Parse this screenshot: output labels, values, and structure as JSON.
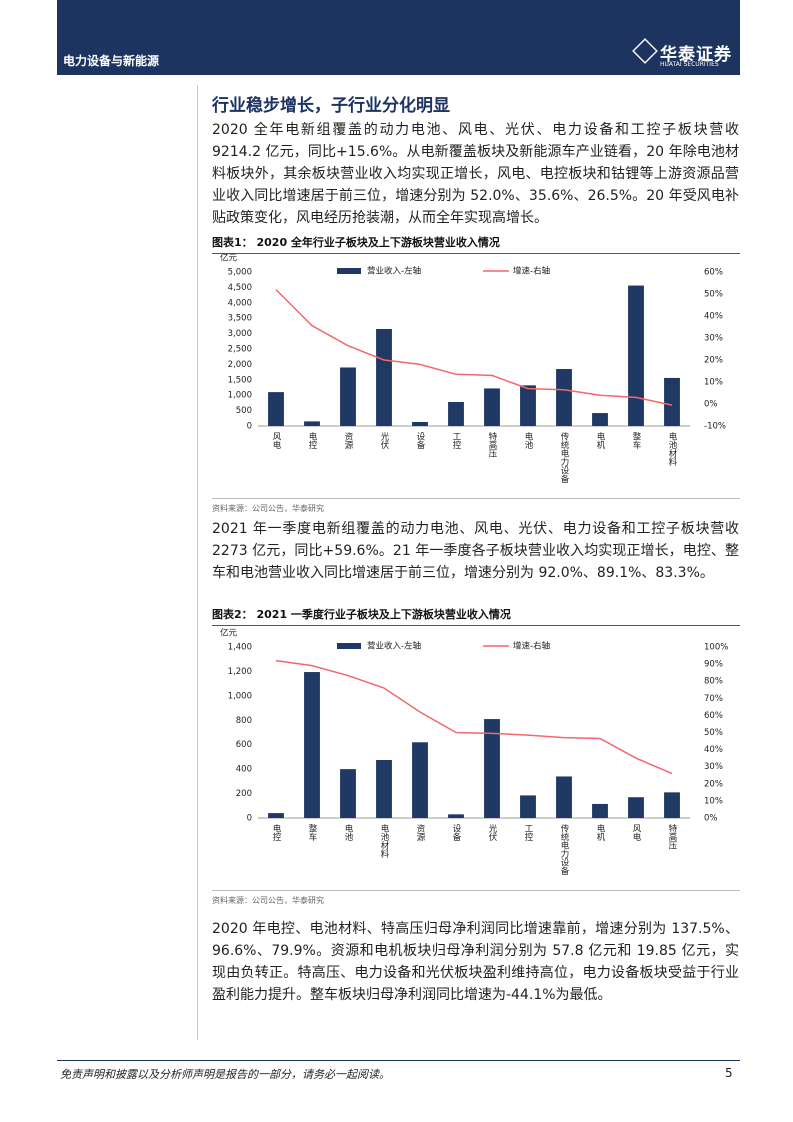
{
  "header": {
    "section": "电力设备与新能源",
    "logo": "华泰证券",
    "logo_en": "HUATAI SECURITIES"
  },
  "heading": "行业稳步增长，子行业分化明显",
  "paragraphs": [
    "2020 全年电新组覆盖的动力电池、风电、光伏、电力设备和工控子板块营收 9214.2 亿元，同比+15.6%。从电新覆盖板块及新能源车产业链看，20 年除电池材料板块外，其余板块营业收入均实现正增长，风电、电控板块和钴锂等上游资源品营业收入同比增速居于前三位，增速分别为 52.0%、35.6%、26.5%。20 年受风电补贴政策变化，风电经历抢装潮，从而全年实现高增长。",
    "2021 年一季度电新组覆盖的动力电池、风电、光伏、电力设备和工控子板块营收 2273 亿元，同比+59.6%。21 年一季度各子板块营业收入均实现正增长，电控、整车和电池营业收入同比增速居于前三位，增速分别为 92.0%、89.1%、83.3%。",
    "2020 年电控、电池材料、特高压归母净利润同比增速靠前，增速分别为 137.5%、96.6%、79.9%。资源和电机板块归母净利润分别为 57.8 亿元和 19.85 亿元，实现由负转正。特高压、电力设备和光伏板块盈利维持高位，电力设备板块受益于行业盈利能力提升。整车板块归母净利润同比增速为-44.1%为最低。"
  ],
  "chart_data": [
    {
      "type": "combo",
      "title": "图表1： 2020 全年行业子板块及上下游板块营业收入情况",
      "y_label": "亿元",
      "source": "资料来源：公司公告，华泰研究",
      "legend": "top",
      "grid": false,
      "categories": [
        "风电",
        "电控",
        "资源",
        "光伏",
        "设备",
        "工控",
        "特高压",
        "电池",
        "传统电力设备",
        "电机",
        "整车",
        "电池材料"
      ],
      "series": [
        {
          "name": "营业收入-左轴",
          "type": "bar",
          "color": "#1f3864",
          "values": [
            1100,
            150,
            1900,
            3150,
            130,
            780,
            1220,
            1320,
            1850,
            420,
            4560,
            1560
          ]
        },
        {
          "name": "增速-右轴",
          "type": "line",
          "axis": "y2",
          "color": "#f4676a",
          "values": [
            52.0,
            35.6,
            26.5,
            20,
            18,
            13.5,
            13,
            7,
            6.5,
            4,
            3,
            -0.5
          ]
        }
      ],
      "ylim": [
        0,
        5000
      ],
      "yticks": [
        0,
        500,
        {
          "value": 1000,
          "label": "1,000"
        },
        {
          "value": 1500,
          "label": "1,500"
        },
        {
          "value": 2000,
          "label": "2,000"
        },
        {
          "value": 2500,
          "label": "2,500"
        },
        {
          "value": 3000,
          "label": "3,000"
        },
        {
          "value": 3500,
          "label": "3,500"
        },
        {
          "value": 4000,
          "label": "4,000"
        },
        {
          "value": 4500,
          "label": "4,500"
        },
        {
          "value": 5000,
          "label": "5,000"
        }
      ],
      "y2lim": [
        -10,
        60
      ],
      "y2ticks": [
        {
          "value": -10,
          "label": "-10%"
        },
        {
          "value": 0,
          "label": "0%"
        },
        {
          "value": 10,
          "label": "10%"
        },
        {
          "value": 20,
          "label": "20%"
        },
        {
          "value": 30,
          "label": "30%"
        },
        {
          "value": 40,
          "label": "40%"
        },
        {
          "value": 50,
          "label": "50%"
        },
        {
          "value": 60,
          "label": "60%"
        }
      ]
    },
    {
      "type": "combo",
      "title": "图表2： 2021 一季度行业子板块及上下游板块营业收入情况",
      "y_label": "亿元",
      "source": "资料来源：公司公告，华泰研究",
      "legend": "top",
      "grid": false,
      "categories": [
        "电控",
        "整车",
        "电池",
        "电池材料",
        "资源",
        "设备",
        "光伏",
        "工控",
        "传统电力设备",
        "电机",
        "风电",
        "特高压"
      ],
      "series": [
        {
          "name": "营业收入-左轴",
          "type": "bar",
          "color": "#1f3864",
          "values": [
            40,
            1195,
            400,
            475,
            620,
            30,
            810,
            185,
            340,
            115,
            170,
            210
          ]
        },
        {
          "name": "增速-右轴",
          "type": "line",
          "axis": "y2",
          "color": "#f4676a",
          "values": [
            92.0,
            89.1,
            83.3,
            76,
            62,
            50,
            49.5,
            48.5,
            47,
            46.5,
            35,
            26
          ]
        }
      ],
      "ylim": [
        0,
        1400
      ],
      "yticks": [
        0,
        200,
        400,
        600,
        800,
        {
          "value": 1000,
          "label": "1,000"
        },
        {
          "value": 1200,
          "label": "1,200"
        },
        {
          "value": 1400,
          "label": "1,400"
        }
      ],
      "y2lim": [
        0,
        100
      ],
      "y2ticks": [
        {
          "value": 0,
          "label": "0%"
        },
        {
          "value": 10,
          "label": "10%"
        },
        {
          "value": 20,
          "label": "20%"
        },
        {
          "value": 30,
          "label": "30%"
        },
        {
          "value": 40,
          "label": "40%"
        },
        {
          "value": 50,
          "label": "50%"
        },
        {
          "value": 60,
          "label": "60%"
        },
        {
          "value": 70,
          "label": "70%"
        },
        {
          "value": 80,
          "label": "80%"
        },
        {
          "value": 90,
          "label": "90%"
        },
        {
          "value": 100,
          "label": "100%"
        }
      ]
    }
  ],
  "footer": {
    "disclaimer": "免责声明和披露以及分析师声明是报告的一部分，请务必一起阅读。",
    "page": 5
  }
}
